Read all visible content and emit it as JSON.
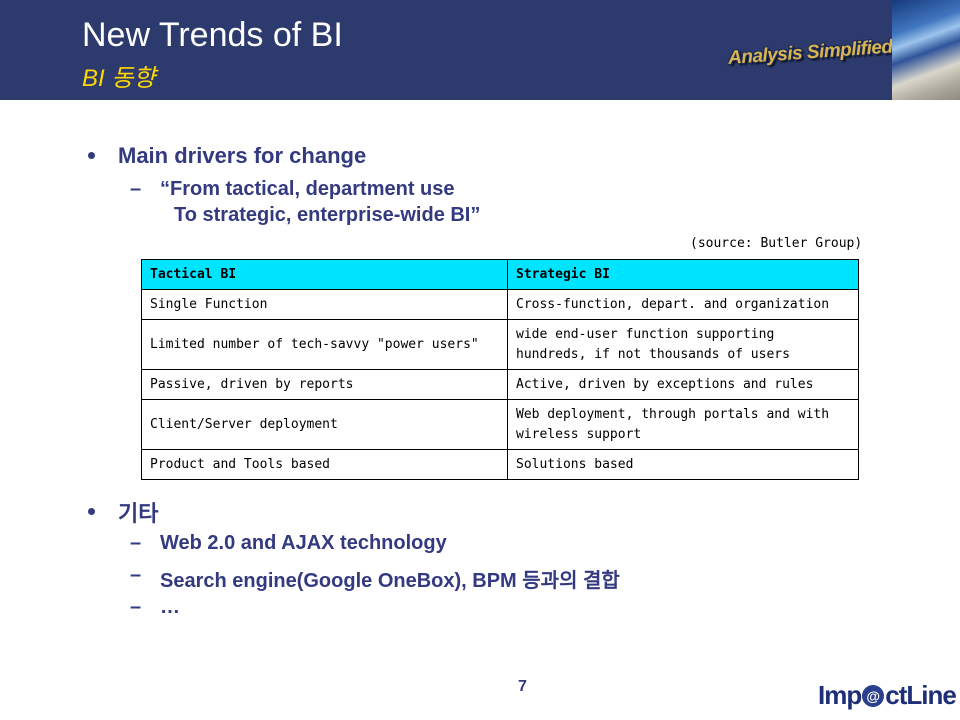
{
  "header": {
    "title": "New Trends of BI",
    "subtitle": "BI 동향",
    "logo_tag": "Analysis Simplified!"
  },
  "bullets": [
    {
      "text": "Main drivers for change",
      "sub": [
        {
          "line1": "“From tactical, department use",
          "line2": "To strategic, enterprise-wide BI”"
        }
      ]
    },
    {
      "text": "기타",
      "sub": [
        "Web 2.0 and AJAX technology",
        "Search engine(Google OneBox), BPM 등과의 결합",
        "…"
      ]
    }
  ],
  "table": {
    "source": "(source: Butler Group)",
    "headers": [
      "Tactical BI",
      "Strategic BI"
    ],
    "rows": [
      [
        "Single Function",
        "Cross-function, depart. and organization"
      ],
      [
        "Limited number of tech-savvy \"power users\"",
        [
          "wide end-user function supporting",
          "hundreds, if not thousands of users"
        ]
      ],
      [
        "Passive, driven by reports",
        "Active, driven by exceptions and rules"
      ],
      [
        "Client/Server deployment",
        [
          "Web deployment, through portals and with",
          "wireless support"
        ]
      ],
      [
        "Product and Tools based",
        "Solutions based"
      ]
    ]
  },
  "footer": {
    "page_number": "7",
    "brand_pre": "Imp",
    "brand_at": "@",
    "brand_post": "ctLine"
  },
  "colors": {
    "header_bg": "#2d3a6e",
    "subtitle": "#ffd800",
    "bullet_text": "#333a80",
    "table_header_bg": "#00e5ff"
  }
}
